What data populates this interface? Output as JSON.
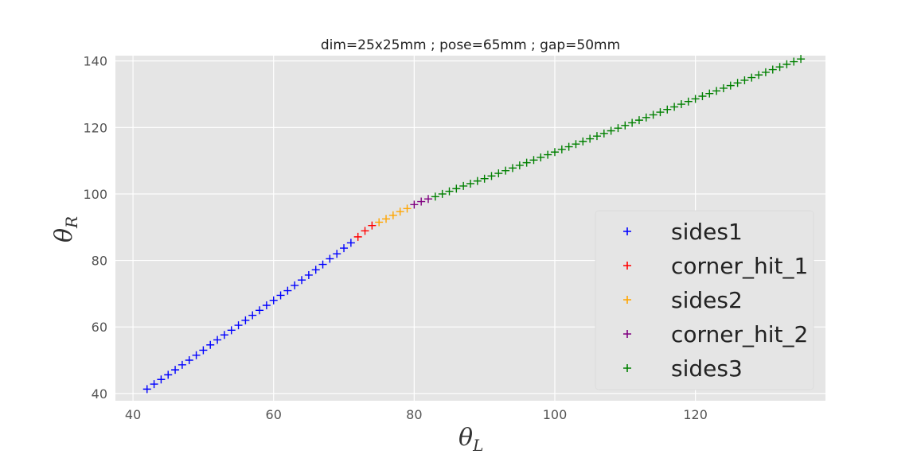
{
  "chart_data": {
    "type": "scatter",
    "title": "dim=25x25mm ; pose=65mm ; gap=50mm",
    "xlabel": {
      "main": "θ",
      "sub": "L"
    },
    "ylabel": {
      "main": "θ",
      "sub": "R"
    },
    "xlim": [
      37.5,
      138.5
    ],
    "ylim": [
      37.8,
      141.6
    ],
    "xticks": [
      40,
      60,
      80,
      100,
      120
    ],
    "yticks": [
      40,
      60,
      80,
      100,
      120,
      140
    ],
    "grid": true,
    "marker": "+",
    "legend": {
      "position": "bottom-right"
    },
    "series": [
      {
        "name": "sides1",
        "color": "#0000ff",
        "x": [
          42,
          43,
          44,
          45,
          46,
          47,
          48,
          49,
          50,
          51,
          52,
          53,
          54,
          55,
          56,
          57,
          58,
          59,
          60,
          61,
          62,
          63,
          64,
          65,
          66,
          67,
          68,
          69,
          70,
          71
        ],
        "y": [
          41.3,
          42.8,
          44.2,
          45.6,
          47.1,
          48.6,
          50.0,
          51.5,
          53.0,
          54.6,
          56.1,
          57.6,
          59.0,
          60.5,
          62.0,
          63.5,
          65.0,
          66.5,
          68.0,
          69.5,
          70.9,
          72.5,
          74.1,
          75.6,
          77.2,
          78.8,
          80.5,
          82.0,
          83.7,
          85.3
        ]
      },
      {
        "name": "corner_hit_1",
        "color": "#ff0000",
        "x": [
          72,
          73,
          74
        ],
        "y": [
          87.1,
          88.9,
          90.5
        ]
      },
      {
        "name": "sides2",
        "color": "#ffa500",
        "x": [
          75,
          76,
          77,
          78,
          79
        ],
        "y": [
          91.5,
          92.5,
          93.6,
          94.7,
          95.6
        ]
      },
      {
        "name": "corner_hit_2",
        "color": "#800080",
        "x": [
          80,
          81,
          82
        ],
        "y": [
          96.8,
          97.7,
          98.5
        ]
      },
      {
        "name": "sides3",
        "color": "#008000",
        "x": [
          83,
          84,
          85,
          86,
          87,
          88,
          89,
          90,
          91,
          92,
          93,
          94,
          95,
          96,
          97,
          98,
          99,
          100,
          101,
          102,
          103,
          104,
          105,
          106,
          107,
          108,
          109,
          110,
          111,
          112,
          113,
          114,
          115,
          116,
          117,
          118,
          119,
          120,
          121,
          122,
          123,
          124,
          125,
          126,
          127,
          128,
          129,
          130,
          131,
          132,
          133,
          134,
          135
        ],
        "y": [
          99.2,
          100.0,
          100.8,
          101.6,
          102.4,
          103.1,
          103.9,
          104.6,
          105.4,
          106.2,
          107.0,
          107.8,
          108.6,
          109.4,
          110.2,
          111.0,
          111.8,
          112.6,
          113.4,
          114.2,
          115.0,
          115.8,
          116.6,
          117.4,
          118.2,
          119.0,
          119.8,
          120.6,
          121.4,
          122.2,
          123.0,
          123.8,
          124.6,
          125.4,
          126.2,
          127.0,
          127.8,
          128.6,
          129.4,
          130.2,
          131.0,
          131.8,
          132.6,
          133.4,
          134.2,
          135.0,
          135.8,
          136.6,
          137.4,
          138.2,
          139.0,
          139.8,
          140.6
        ]
      }
    ]
  }
}
